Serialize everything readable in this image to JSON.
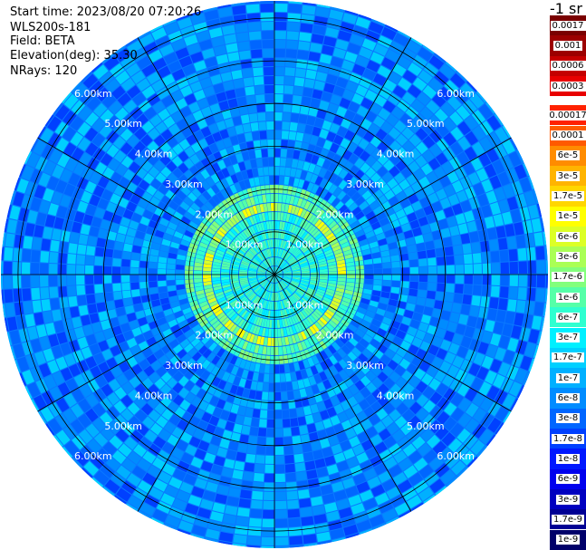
{
  "header": {
    "start_time": "Start time: 2023/08/20 07:20:26",
    "instrument": "WLS200s-181",
    "field": "Field: BETA",
    "elevation": "Elevation(deg): 35.30",
    "nrays": "NRays: 120"
  },
  "units_label": "-1 sr",
  "range_rings": {
    "labels": [
      "1.00km",
      "2.00km",
      "3.00km",
      "4.00km",
      "5.00km",
      "6.00km"
    ],
    "max_range_km": 6.4,
    "spokes": 12
  },
  "colorbar": {
    "upper_block": [
      {
        "label": "0.0017",
        "color": "#7a0000"
      },
      {
        "label": "0.001",
        "color": "#9c0000"
      },
      {
        "label": "0.0006",
        "color": "#c40000"
      },
      {
        "label": "0.0003",
        "color": "#e80000"
      }
    ],
    "lower_block": [
      {
        "label": "0.00017",
        "color": "#ff2200"
      },
      {
        "label": "0.0001",
        "color": "#ff5a00"
      },
      {
        "label": "6e-5",
        "color": "#ff8c00"
      },
      {
        "label": "3e-5",
        "color": "#ffb400"
      },
      {
        "label": "1.7e-5",
        "color": "#ffd600"
      },
      {
        "label": "1e-5",
        "color": "#ffff00"
      },
      {
        "label": "6e-6",
        "color": "#dcff26"
      },
      {
        "label": "3e-6",
        "color": "#aaff55"
      },
      {
        "label": "1.7e-6",
        "color": "#82ff7c"
      },
      {
        "label": "1e-6",
        "color": "#55ffa8"
      },
      {
        "label": "6e-7",
        "color": "#2fffd0"
      },
      {
        "label": "3e-7",
        "color": "#00f0ff"
      },
      {
        "label": "1.7e-7",
        "color": "#00d0ff"
      },
      {
        "label": "1e-7",
        "color": "#00b0ff"
      },
      {
        "label": "6e-8",
        "color": "#008cff"
      },
      {
        "label": "3e-8",
        "color": "#0066ff"
      },
      {
        "label": "1.7e-8",
        "color": "#0040ff"
      },
      {
        "label": "1e-8",
        "color": "#0018ff"
      },
      {
        "label": "6e-9",
        "color": "#0000ee"
      },
      {
        "label": "3e-9",
        "color": "#0000c0"
      },
      {
        "label": "1.7e-9",
        "color": "#000094"
      },
      {
        "label": "1e-9",
        "color": "#00006a"
      }
    ]
  }
}
